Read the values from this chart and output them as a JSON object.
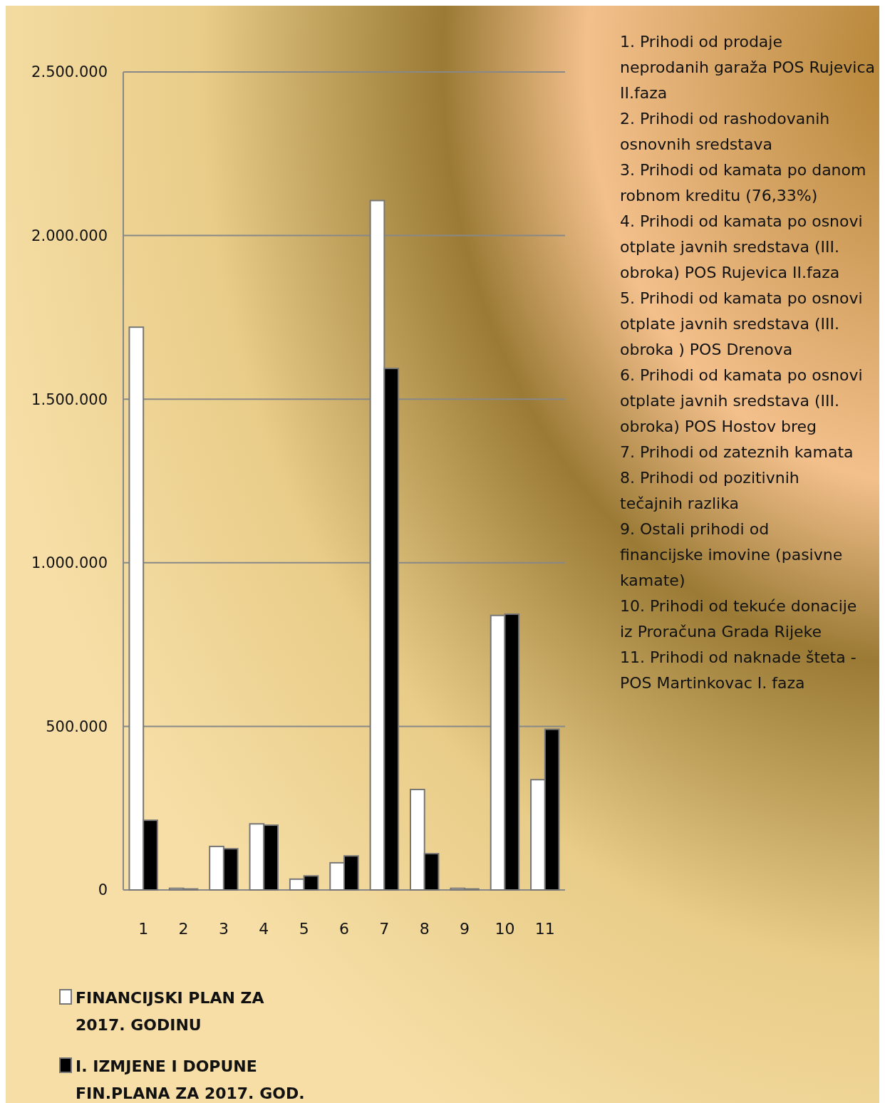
{
  "chart_data": {
    "type": "bar",
    "categories": [
      "1",
      "2",
      "3",
      "4",
      "5",
      "6",
      "7",
      "8",
      "9",
      "10",
      "11"
    ],
    "series": [
      {
        "name": "FINANCIJSKI PLAN ZA 2017. GODINU",
        "color": "#ffffff",
        "values": [
          1720000,
          5000,
          133000,
          202000,
          33000,
          83000,
          2107000,
          307000,
          5000,
          839000,
          337000
        ]
      },
      {
        "name": "I. IZMJENE I DOPUNE FIN.PLANA ZA 2017. GOD.",
        "color": "#000000",
        "values": [
          213000,
          3000,
          126000,
          198000,
          43000,
          104000,
          1594000,
          111000,
          3000,
          843000,
          491000
        ]
      }
    ],
    "ylim": [
      0,
      2500000
    ],
    "yticks": [
      {
        "value": 0,
        "label": "0"
      },
      {
        "value": 500000,
        "label": "500.000"
      },
      {
        "value": 1000000,
        "label": "1.000.000"
      },
      {
        "value": 1500000,
        "label": "1.500.000"
      },
      {
        "value": 2000000,
        "label": "2.000.000"
      },
      {
        "value": 2500000,
        "label": "2.500.000"
      }
    ],
    "grid": "y",
    "legend": "bottom left",
    "annotations": [
      "1. Prihodi od prodaje neprodanih garaža  POS Rujevica II.faza",
      "2. Prihodi od rashodovanih osnovnih sredstava",
      "3. Prihodi od kamata po danom robnom kreditu (76,33%)",
      "4. Prihodi od kamata po osnovi otplate  javnih sredstava (III. obroka) POS Rujevica II.faza",
      "5. Prihodi od kamata po osnovi otplate javnih sredstava (III. obroka ) POS  Drenova",
      "6. Prihodi od kamata po osnovi otplate javnih sredstava  (III. obroka) POS  Hostov breg",
      "7. Prihodi od zateznih kamata",
      "8. Prihodi od pozitivnih tečajnih razlika",
      "9. Ostali prihodi od financijske imovine (pasivne kamate)",
      "10. Prihodi od tekuće donacije iz Proračuna Grada Rijeke",
      "11. Prihodi od naknade šteta - POS Martinkovac I. faza"
    ]
  }
}
